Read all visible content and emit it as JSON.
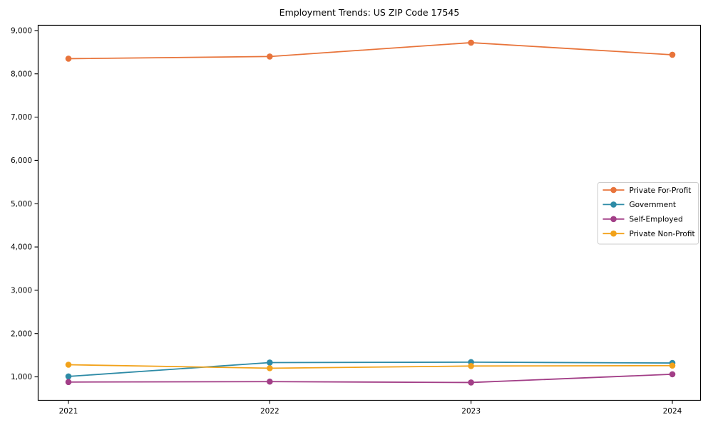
{
  "figure": {
    "background": "#ffffff"
  },
  "chart_data": {
    "type": "line",
    "title": "Employment Trends: US ZIP Code 17545",
    "x": [
      "2021",
      "2022",
      "2023",
      "2024"
    ],
    "series": [
      {
        "name": "Private For-Profit",
        "color": "#e8743b",
        "values": [
          8350,
          8400,
          8720,
          8440
        ]
      },
      {
        "name": "Government",
        "color": "#2e8ba6",
        "values": [
          1010,
          1330,
          1340,
          1320
        ]
      },
      {
        "name": "Self-Employed",
        "color": "#a23e87",
        "values": [
          880,
          890,
          870,
          1060
        ]
      },
      {
        "name": "Private Non-Profit",
        "color": "#f2a21a",
        "values": [
          1280,
          1200,
          1250,
          1260
        ]
      }
    ],
    "xlabel": "",
    "ylabel": "",
    "ylim": [
      450,
      9130
    ],
    "yticks": [
      1000,
      2000,
      3000,
      4000,
      5000,
      6000,
      7000,
      8000,
      9000
    ],
    "ytick_labels": [
      "1,000",
      "2,000",
      "3,000",
      "4,000",
      "5,000",
      "6,000",
      "7,000",
      "8,000",
      "9,000"
    ],
    "grid": false,
    "marker": "circle",
    "axis_color": "#000000",
    "tick_label_color": "#000000",
    "legend": {
      "position": "center-right",
      "background": "#ffffff",
      "border_color": "#cccccc",
      "entries": [
        "Private For-Profit",
        "Government",
        "Self-Employed",
        "Private Non-Profit"
      ]
    }
  }
}
